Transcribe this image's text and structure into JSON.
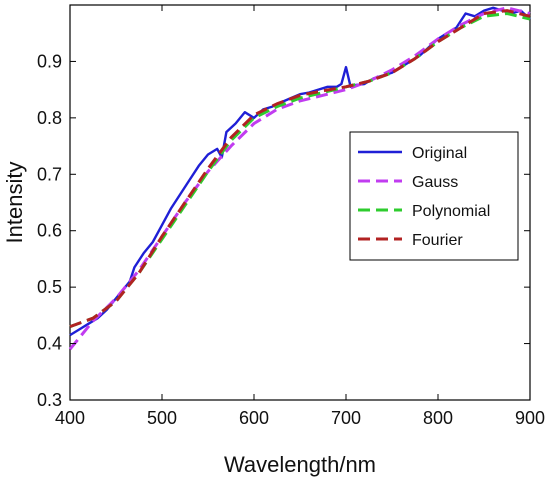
{
  "chart_data": {
    "type": "line",
    "title": "",
    "xlabel": "Wavelength/nm",
    "ylabel": "Intensity",
    "xlim": [
      400,
      900
    ],
    "ylim": [
      0.3,
      1.0
    ],
    "xticks": [
      400,
      500,
      600,
      700,
      800,
      900
    ],
    "yticks": [
      0.3,
      0.4,
      0.5,
      0.6,
      0.7,
      0.8,
      0.9
    ],
    "grid": false,
    "legend_position": "right",
    "series": [
      {
        "name": "Original",
        "style": "solid",
        "color": "#1f1fd6",
        "x": [
          400,
          410,
          420,
          430,
          440,
          450,
          460,
          465,
          470,
          480,
          490,
          500,
          510,
          520,
          530,
          540,
          550,
          560,
          565,
          570,
          580,
          590,
          600,
          610,
          620,
          630,
          640,
          650,
          660,
          670,
          680,
          690,
          695,
          700,
          705,
          710,
          720,
          730,
          740,
          750,
          760,
          770,
          780,
          790,
          800,
          810,
          820,
          830,
          840,
          850,
          860,
          870,
          880,
          890,
          900
        ],
        "y": [
          0.415,
          0.425,
          0.435,
          0.445,
          0.46,
          0.48,
          0.5,
          0.51,
          0.535,
          0.56,
          0.58,
          0.61,
          0.64,
          0.665,
          0.69,
          0.715,
          0.735,
          0.745,
          0.73,
          0.775,
          0.79,
          0.81,
          0.8,
          0.815,
          0.82,
          0.828,
          0.835,
          0.842,
          0.845,
          0.85,
          0.855,
          0.855,
          0.86,
          0.89,
          0.855,
          0.858,
          0.86,
          0.87,
          0.875,
          0.88,
          0.89,
          0.9,
          0.91,
          0.925,
          0.94,
          0.95,
          0.96,
          0.985,
          0.98,
          0.99,
          0.995,
          0.99,
          0.985,
          0.99,
          0.975
        ]
      },
      {
        "name": "Gauss",
        "style": "dashed",
        "color": "#c13cf0",
        "x": [
          400,
          425,
          450,
          475,
          500,
          525,
          550,
          575,
          600,
          625,
          650,
          675,
          700,
          725,
          750,
          775,
          800,
          825,
          850,
          875,
          900
        ],
        "y": [
          0.39,
          0.44,
          0.48,
          0.53,
          0.59,
          0.65,
          0.705,
          0.75,
          0.79,
          0.815,
          0.83,
          0.84,
          0.85,
          0.865,
          0.885,
          0.91,
          0.94,
          0.965,
          0.985,
          0.995,
          0.985
        ]
      },
      {
        "name": "Polynomial",
        "style": "dashed",
        "color": "#2ecc2e",
        "x": [
          400,
          425,
          450,
          475,
          500,
          525,
          550,
          575,
          600,
          625,
          650,
          675,
          700,
          725,
          750,
          775,
          800,
          825,
          850,
          875,
          900
        ],
        "y": [
          0.43,
          0.445,
          0.475,
          0.525,
          0.585,
          0.645,
          0.705,
          0.76,
          0.8,
          0.82,
          0.835,
          0.845,
          0.855,
          0.865,
          0.88,
          0.905,
          0.935,
          0.96,
          0.98,
          0.985,
          0.975
        ]
      },
      {
        "name": "Fourier",
        "style": "dashed",
        "color": "#b22222",
        "x": [
          400,
          425,
          450,
          475,
          500,
          525,
          550,
          575,
          600,
          625,
          650,
          675,
          700,
          725,
          750,
          775,
          800,
          825,
          850,
          875,
          900
        ],
        "y": [
          0.43,
          0.445,
          0.475,
          0.525,
          0.59,
          0.65,
          0.71,
          0.765,
          0.805,
          0.825,
          0.84,
          0.848,
          0.855,
          0.865,
          0.88,
          0.905,
          0.935,
          0.96,
          0.985,
          0.99,
          0.98
        ]
      }
    ]
  }
}
